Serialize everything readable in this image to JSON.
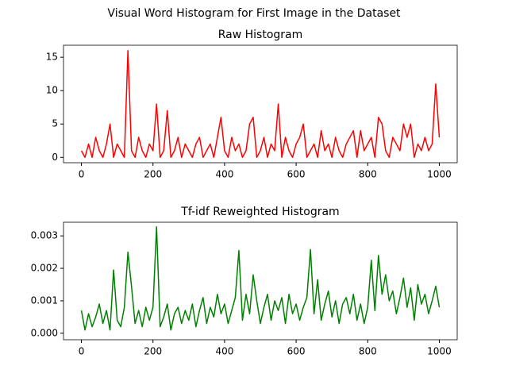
{
  "title": "Visual Word Histogram for First Image in the Dataset",
  "chart_data": [
    {
      "type": "line",
      "title": "Raw Histogram",
      "x": [
        0,
        10,
        20,
        30,
        40,
        50,
        60,
        70,
        80,
        90,
        100,
        110,
        120,
        130,
        140,
        150,
        160,
        170,
        180,
        190,
        200,
        210,
        220,
        230,
        240,
        250,
        260,
        270,
        280,
        290,
        300,
        310,
        320,
        330,
        340,
        350,
        360,
        370,
        380,
        390,
        400,
        410,
        420,
        430,
        440,
        450,
        460,
        470,
        480,
        490,
        500,
        510,
        520,
        530,
        540,
        550,
        560,
        570,
        580,
        590,
        600,
        610,
        620,
        630,
        640,
        650,
        660,
        670,
        680,
        690,
        700,
        710,
        720,
        730,
        740,
        750,
        760,
        770,
        780,
        790,
        800,
        810,
        820,
        830,
        840,
        850,
        860,
        870,
        880,
        890,
        900,
        910,
        920,
        930,
        940,
        950,
        960,
        970,
        980,
        990,
        1000
      ],
      "series": [
        {
          "color": "#ff0000",
          "values": [
            1,
            0,
            2,
            0,
            3,
            1,
            0,
            2,
            5,
            0,
            2,
            1,
            0,
            16,
            1,
            0,
            3,
            1,
            0,
            2,
            1,
            8,
            0,
            1,
            7,
            0,
            1,
            3,
            0,
            2,
            1,
            0,
            2,
            3,
            0,
            1,
            2,
            0,
            3,
            6,
            1,
            0,
            3,
            1,
            2,
            0,
            1,
            5,
            6,
            0,
            1,
            3,
            0,
            2,
            1,
            8,
            0,
            3,
            1,
            0,
            2,
            3,
            5,
            0,
            1,
            2,
            0,
            4,
            1,
            2,
            0,
            3,
            1,
            0,
            2,
            3,
            4,
            0,
            4,
            1,
            2,
            3,
            0,
            6,
            5,
            1,
            0,
            3,
            2,
            1,
            5,
            3,
            5,
            0,
            2,
            1,
            3,
            1,
            2,
            11,
            3
          ]
        }
      ],
      "xlim": [
        -50,
        1050
      ],
      "ylim": [
        -0.8,
        16.8
      ],
      "xticks": [
        0,
        200,
        400,
        600,
        800,
        1000
      ],
      "yticks": [
        0,
        5,
        10,
        15
      ]
    },
    {
      "type": "line",
      "title": "Tf-idf Reweighted Histogram",
      "x": [
        0,
        10,
        20,
        30,
        40,
        50,
        60,
        70,
        80,
        90,
        100,
        110,
        120,
        130,
        140,
        150,
        160,
        170,
        180,
        190,
        200,
        210,
        220,
        230,
        240,
        250,
        260,
        270,
        280,
        290,
        300,
        310,
        320,
        330,
        340,
        350,
        360,
        370,
        380,
        390,
        400,
        410,
        420,
        430,
        440,
        450,
        460,
        470,
        480,
        490,
        500,
        510,
        520,
        530,
        540,
        550,
        560,
        570,
        580,
        590,
        600,
        610,
        620,
        630,
        640,
        650,
        660,
        670,
        680,
        690,
        700,
        710,
        720,
        730,
        740,
        750,
        760,
        770,
        780,
        790,
        800,
        810,
        820,
        830,
        840,
        850,
        860,
        870,
        880,
        890,
        900,
        910,
        920,
        930,
        940,
        950,
        960,
        970,
        980,
        990,
        1000
      ],
      "series": [
        {
          "color": "#008000",
          "values": [
            0.0007,
            0.0001,
            0.0006,
            0.0002,
            0.0005,
            0.0009,
            0.0003,
            0.0007,
            0.0001,
            0.00195,
            0.0004,
            0.0002,
            0.0008,
            0.0025,
            0.00145,
            0.0003,
            0.0007,
            0.0002,
            0.0008,
            0.0004,
            0.0008,
            0.00328,
            0.0002,
            0.0005,
            0.0009,
            0.0001,
            0.0006,
            0.0008,
            0.0003,
            0.0007,
            0.0004,
            0.0009,
            0.0002,
            0.0007,
            0.0011,
            0.0003,
            0.0008,
            0.0005,
            0.0012,
            0.0006,
            0.0009,
            0.0003,
            0.0007,
            0.0011,
            0.00255,
            0.0004,
            0.0012,
            0.0006,
            0.0018,
            0.001,
            0.0003,
            0.0008,
            0.0012,
            0.0004,
            0.001,
            0.0007,
            0.0011,
            0.0003,
            0.0012,
            0.0006,
            0.0009,
            0.0004,
            0.0008,
            0.0011,
            0.00258,
            0.0006,
            0.00165,
            0.0004,
            0.0009,
            0.0013,
            0.0005,
            0.001,
            0.0003,
            0.0009,
            0.0011,
            0.0006,
            0.0012,
            0.0004,
            0.0009,
            0.0003,
            0.0008,
            0.00225,
            0.0007,
            0.0024,
            0.0012,
            0.0018,
            0.001,
            0.0013,
            0.0006,
            0.0011,
            0.0017,
            0.0008,
            0.0014,
            0.0004,
            0.0015,
            0.0009,
            0.0012,
            0.0006,
            0.001,
            0.00145,
            0.0008
          ]
        }
      ],
      "xlim": [
        -50,
        1050
      ],
      "ylim": [
        -0.0002,
        0.00342
      ],
      "xticks": [
        0,
        200,
        400,
        600,
        800,
        1000
      ],
      "yticks": [
        {
          "value": 0,
          "label": "0.000"
        },
        {
          "value": 0.001,
          "label": "0.001"
        },
        {
          "value": 0.002,
          "label": "0.002"
        },
        {
          "value": 0.003,
          "label": "0.003"
        }
      ]
    }
  ]
}
